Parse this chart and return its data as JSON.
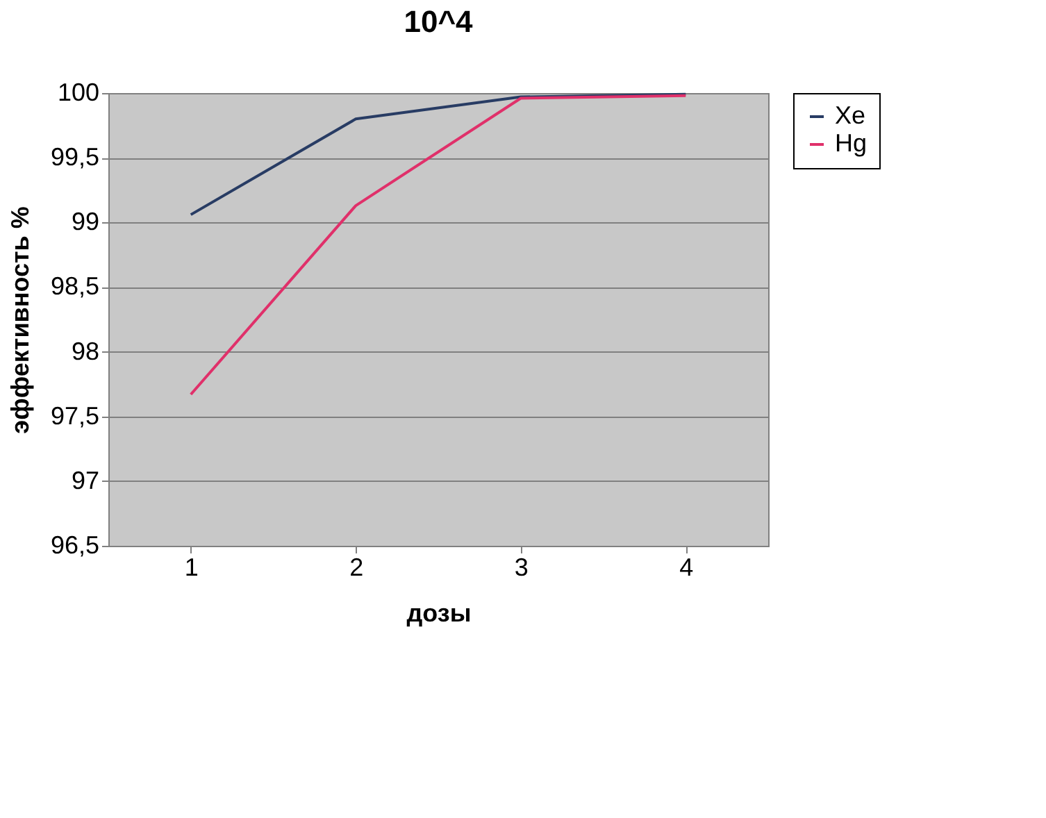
{
  "chart_data": {
    "type": "line",
    "title": "10^4",
    "xlabel": "дозы",
    "ylabel": "эффективность %",
    "categories": [
      "1",
      "2",
      "3",
      "4"
    ],
    "series": [
      {
        "name": "Xe",
        "color": "#283c64",
        "values": [
          99.06,
          99.8,
          99.97,
          99.99
        ]
      },
      {
        "name": "Hg",
        "color": "#e0306a",
        "values": [
          97.67,
          99.13,
          99.96,
          99.98
        ]
      }
    ],
    "ylim": [
      96.5,
      100
    ],
    "yticks": [
      {
        "value": 96.5,
        "label": "96,5"
      },
      97,
      {
        "value": 97.5,
        "label": "97,5"
      },
      98,
      {
        "value": 98.5,
        "label": "98,5"
      },
      99,
      {
        "value": 99.5,
        "label": "99,5"
      },
      100
    ],
    "grid": "y",
    "legend": "right",
    "marker": "none",
    "line_style": "solid"
  }
}
